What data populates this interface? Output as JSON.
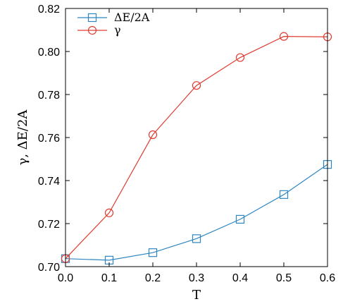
{
  "chart_data": {
    "type": "line",
    "xlabel": "T",
    "ylabel": "γ, ΔE/2A",
    "xlim": [
      0.0,
      0.6
    ],
    "ylim": [
      0.7,
      0.82
    ],
    "xticks": [
      "0.0",
      "0.1",
      "0.2",
      "0.3",
      "0.4",
      "0.5",
      "0.6"
    ],
    "yticks": [
      "0.70",
      "0.72",
      "0.74",
      "0.76",
      "0.78",
      "0.80",
      "0.82"
    ],
    "grid": false,
    "legend_position": "top-left",
    "x": [
      0.0,
      0.1,
      0.2,
      0.3,
      0.4,
      0.5,
      0.6
    ],
    "series": [
      {
        "name": "ΔE/2A",
        "marker": "square",
        "color": "#2e86c1",
        "values": [
          0.7037,
          0.703,
          0.7065,
          0.713,
          0.722,
          0.7335,
          0.7475
        ]
      },
      {
        "name": "γ",
        "marker": "circle",
        "color": "#e03c31",
        "values": [
          0.7037,
          0.725,
          0.7613,
          0.7842,
          0.7972,
          0.807,
          0.8068
        ]
      }
    ]
  }
}
